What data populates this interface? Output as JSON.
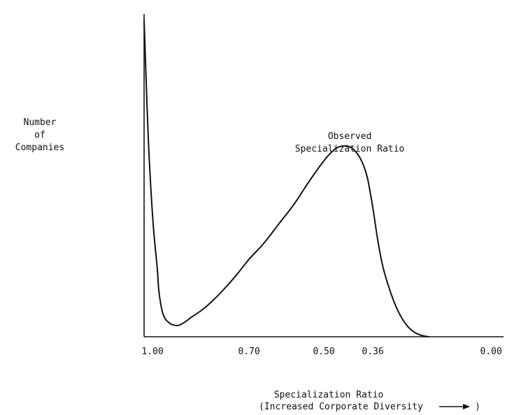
{
  "chart_data": {
    "type": "line",
    "ylabel_lines": [
      "Number",
      "of",
      "Companies"
    ],
    "curve_label_lines": [
      "Observed",
      "Specialization Ratio"
    ],
    "xlabel": "Specialization Ratio",
    "xlabel_sub": "(Increased Corporate Diversity",
    "xlabel_sub_end": ")",
    "x_reversed": true,
    "xlim": [
      1.0,
      0.0
    ],
    "ylim": [
      0,
      1
    ],
    "x_ticks": [
      "1.00",
      "0.70",
      "0.50",
      "0.36",
      "0.00"
    ],
    "series": [
      {
        "x": [
          1.0,
          0.999,
          0.995,
          0.99,
          0.985,
          0.98,
          0.97,
          0.96,
          0.95,
          0.94,
          0.92,
          0.9,
          0.88,
          0.85,
          0.82,
          0.78,
          0.74,
          0.7,
          0.66,
          0.62,
          0.58,
          0.54,
          0.5,
          0.47,
          0.45,
          0.43,
          0.41,
          0.39,
          0.375,
          0.36,
          0.345,
          0.33,
          0.31,
          0.29,
          0.27,
          0.25,
          0.23,
          0.21,
          0.19
        ],
        "y": [
          0.98,
          0.9,
          0.6,
          0.36,
          0.21,
          0.14,
          0.08,
          0.055,
          0.045,
          0.038,
          0.035,
          0.045,
          0.06,
          0.08,
          0.105,
          0.145,
          0.19,
          0.24,
          0.29,
          0.35,
          0.41,
          0.48,
          0.545,
          0.58,
          0.59,
          0.59,
          0.575,
          0.54,
          0.49,
          0.4,
          0.3,
          0.22,
          0.15,
          0.095,
          0.055,
          0.028,
          0.012,
          0.004,
          0.0
        ]
      }
    ]
  }
}
